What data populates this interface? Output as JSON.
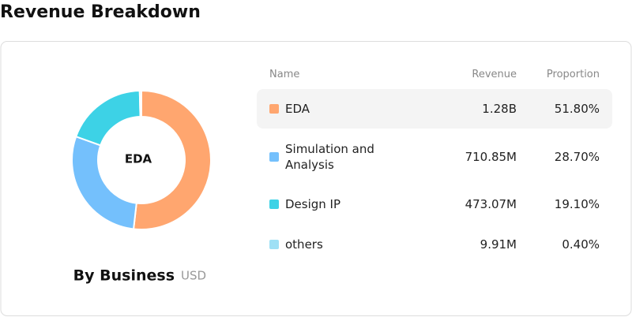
{
  "header": {
    "title": "Revenue Breakdown"
  },
  "chart_data": {
    "type": "donut",
    "title": "By Business",
    "unit": "USD",
    "center_label": "EDA",
    "categories": [
      "EDA",
      "Simulation and Analysis",
      "Design IP",
      "others"
    ],
    "values": [
      51.8,
      28.7,
      19.1,
      0.4
    ],
    "value_labels": [
      "51.80%",
      "28.70%",
      "19.10%",
      "0.40%"
    ],
    "colors": [
      "#ffa66f",
      "#74c0fc",
      "#3dd2e6",
      "#9ee0f5"
    ]
  },
  "table": {
    "columns": [
      "Name",
      "Revenue",
      "Proportion"
    ],
    "revenue": [
      "1.28B",
      "710.85M",
      "473.07M",
      "9.91M"
    ]
  }
}
